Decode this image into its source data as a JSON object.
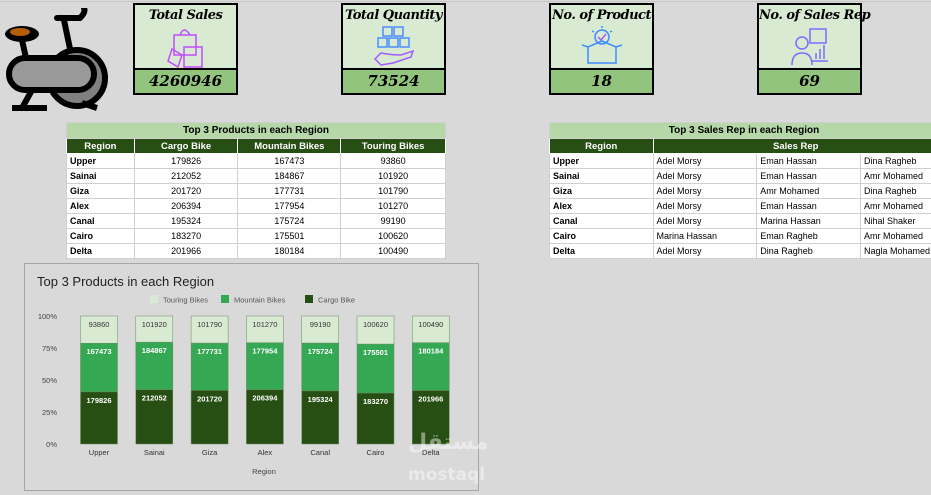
{
  "cards": [
    {
      "title": "Total Sales",
      "value": "4260946",
      "icon": "shopping-bags-icon"
    },
    {
      "title": "Total Quantity",
      "value": "73524",
      "icon": "boxes-in-hand-icon"
    },
    {
      "title": "No. of Product",
      "value": "18",
      "icon": "open-box-check-icon"
    },
    {
      "title": "No. of Sales Rep",
      "value": "69",
      "icon": "sales-rep-icon"
    }
  ],
  "logo_icon": "exercise-bike-icon",
  "products_table": {
    "title": "Top 3 Products in each Region",
    "headers": [
      "Region",
      "Cargo Bike",
      "Mountain Bikes",
      "Touring Bikes"
    ],
    "rows": [
      [
        "Upper",
        "179826",
        "167473",
        "93860"
      ],
      [
        "Sainai",
        "212052",
        "184867",
        "101920"
      ],
      [
        "Giza",
        "201720",
        "177731",
        "101790"
      ],
      [
        "Alex",
        "206394",
        "177954",
        "101270"
      ],
      [
        "Canal",
        "195324",
        "175724",
        "99190"
      ],
      [
        "Cairo",
        "183270",
        "175501",
        "100620"
      ],
      [
        "Delta",
        "201966",
        "180184",
        "100490"
      ]
    ]
  },
  "reps_table": {
    "title": "Top 3 Sales Rep in each Region",
    "headers": [
      "Region",
      "Sales Rep"
    ],
    "rows": [
      [
        "Upper",
        "Adel Morsy",
        "Eman Hassan",
        "Dina Ragheb"
      ],
      [
        "Sainai",
        "Adel Morsy",
        "Eman Hassan",
        "Amr Mohamed"
      ],
      [
        "Giza",
        "Adel Morsy",
        "Amr Mohamed",
        "Dina Ragheb"
      ],
      [
        "Alex",
        "Adel Morsy",
        "Eman Hassan",
        "Amr Mohamed"
      ],
      [
        "Canal",
        "Adel Morsy",
        "Marina Hassan",
        "Nihal Shaker"
      ],
      [
        "Cairo",
        "Marina Hassan",
        "Eman Ragheb",
        "Amr Mohamed"
      ],
      [
        "Delta",
        "Adel Morsy",
        "Dina Ragheb",
        "Nagla Mohamed"
      ]
    ]
  },
  "chart_data": {
    "type": "bar",
    "stacked": "percent",
    "title": "Top 3 Products in each Region",
    "xlabel": "Region",
    "ylabel": "",
    "categories": [
      "Upper",
      "Sainai",
      "Giza",
      "Alex",
      "Canal",
      "Cairo",
      "Delta"
    ],
    "yticks": [
      "0%",
      "25%",
      "50%",
      "75%",
      "100%"
    ],
    "ylim": [
      0,
      100
    ],
    "legend": "top",
    "series": [
      {
        "name": "Cargo Bike",
        "color": "#274e13",
        "values": [
          179826,
          212052,
          201720,
          206394,
          195324,
          183270,
          201966
        ]
      },
      {
        "name": "Mountain Bikes",
        "color": "#34a853",
        "values": [
          167473,
          184867,
          177731,
          177954,
          175724,
          175501,
          180184
        ]
      },
      {
        "name": "Touring Bikes",
        "color": "#d9ead3",
        "values": [
          93860,
          101920,
          101790,
          101270,
          99190,
          100620,
          100490
        ]
      }
    ]
  },
  "watermark": {
    "arabic": "مستقل",
    "latin": "mostaql"
  }
}
